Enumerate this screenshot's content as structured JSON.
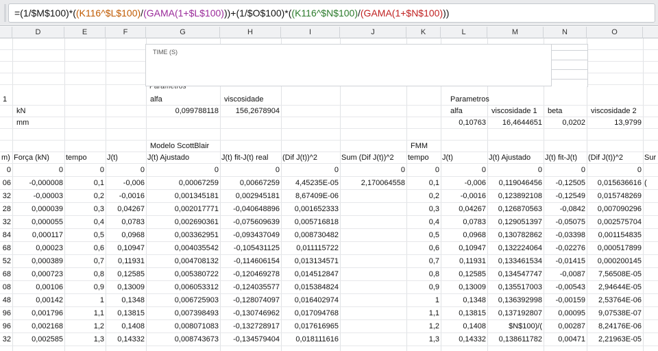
{
  "formula": "=(1/$M$100)*((K116^$L$100)/(GAMA(1+$L$100)))+(1/$O$100)*((K116^$N$100)/(GAMA(1+$N$100)))",
  "formula_parts": {
    "p1": "=(1/$M$100)*(",
    "p2": "(K116^$L$100)",
    "p3": "/",
    "p4": "(GAMA(1+$L$100)",
    "p5": "))",
    "p6": "+(1/$O$100)*(",
    "p7": "(K116^$N$100)",
    "p8": "/",
    "p9": "(GAMA(1+$N$100)",
    "p10": "))"
  },
  "columns": [
    "D",
    "E",
    "F",
    "G",
    "H",
    "I",
    "J",
    "K",
    "L",
    "M",
    "N",
    "O"
  ],
  "chart": {
    "x_label": "TIME (S)",
    "cut_text": "Parametros"
  },
  "params_rows": [
    {
      "c": "1",
      "g": "alfa",
      "h": "viscosidade",
      "l": "Parametros"
    },
    {
      "d": "kN",
      "g": "0,099788118",
      "h": "156,2678904",
      "l": "alfa",
      "m": "viscosidade 1",
      "n": "beta",
      "o": "viscosidade 2"
    },
    {
      "d": "mm",
      "l": "0,10763",
      "m": "16,4644651",
      "n": "0,0202",
      "o": "13,9799"
    }
  ],
  "section_row": {
    "g": "Modelo ScottBlair",
    "k": "FMM"
  },
  "header_row": {
    "c": "m)",
    "d": "Força (kN)",
    "e": "tempo",
    "f": "J(t)",
    "g": "J(t) Ajustado",
    "h": "J(t) fit-J(t) real",
    "i": "(Dif J(t))^2",
    "j": "Sum (Dif J(t))^2",
    "k": "tempo",
    "l": "J(t)",
    "m": "J(t) Ajustado",
    "n": "J(t) fit-J(t)",
    "o": "(Dif J(t))^2",
    "p": "Sur"
  },
  "data_rows": [
    [
      "0",
      "0",
      "0",
      "0",
      "0",
      "0",
      "0",
      "0",
      "0",
      "0",
      "0",
      "0",
      "0",
      ""
    ],
    [
      "06",
      "-0,000008",
      "0,1",
      "-0,006",
      "0,00067259",
      "0,00667259",
      "4,45235E-05",
      "2,170064558",
      "0,1",
      "-0,006",
      "0,119046456",
      "-0,12505",
      "0,015636616",
      "("
    ],
    [
      "32",
      "-0,00003",
      "0,2",
      "-0,0016",
      "0,001345181",
      "0,002945181",
      "8,67409E-06",
      "",
      "0,2",
      "-0,0016",
      "0,123892108",
      "-0,12549",
      "0,015748269",
      ""
    ],
    [
      "28",
      "0,000039",
      "0,3",
      "0,04267",
      "0,002017771",
      "-0,040648896",
      "0,001652333",
      "",
      "0,3",
      "0,04267",
      "0,126870563",
      "-0,0842",
      "0,007090296",
      ""
    ],
    [
      "32",
      "0,000055",
      "0,4",
      "0,0783",
      "0,002690361",
      "-0,075609639",
      "0,005716818",
      "",
      "0,4",
      "0,0783",
      "0,129051397",
      "-0,05075",
      "0,002575704",
      ""
    ],
    [
      "84",
      "0,000117",
      "0,5",
      "0,0968",
      "0,003362951",
      "-0,093437049",
      "0,008730482",
      "",
      "0,5",
      "0,0968",
      "0,130782862",
      "-0,03398",
      "0,001154835",
      ""
    ],
    [
      "68",
      "0,00023",
      "0,6",
      "0,10947",
      "0,004035542",
      "-0,105431125",
      "0,011115722",
      "",
      "0,6",
      "0,10947",
      "0,132224064",
      "-0,02276",
      "0,000517899",
      ""
    ],
    [
      "52",
      "0,000389",
      "0,7",
      "0,11931",
      "0,004708132",
      "-0,114606154",
      "0,013134571",
      "",
      "0,7",
      "0,11931",
      "0,133461534",
      "-0,01415",
      "0,000200145",
      ""
    ],
    [
      "68",
      "0,000723",
      "0,8",
      "0,12585",
      "0,005380722",
      "-0,120469278",
      "0,014512847",
      "",
      "0,8",
      "0,12585",
      "0,134547747",
      "-0,0087",
      "7,56508E-05",
      ""
    ],
    [
      "08",
      "0,00106",
      "0,9",
      "0,13009",
      "0,006053312",
      "-0,124035577",
      "0,015384824",
      "",
      "0,9",
      "0,13009",
      "0,135517003",
      "-0,00543",
      "2,94644E-05",
      ""
    ],
    [
      "48",
      "0,00142",
      "1",
      "0,1348",
      "0,006725903",
      "-0,128074097",
      "0,016402974",
      "",
      "1",
      "0,1348",
      "0,136392998",
      "-0,00159",
      "2,53764E-06",
      ""
    ],
    [
      "96",
      "0,001796",
      "1,1",
      "0,13815",
      "0,007398493",
      "-0,130746962",
      "0,017094768",
      "",
      "1,1",
      "0,13815",
      "0,137192807",
      "0,00095",
      "9,07538E-07",
      ""
    ],
    [
      "96",
      "0,002168",
      "1,2",
      "0,1408",
      "0,008071083",
      "-0,132728917",
      "0,017616965",
      "",
      "1,2",
      "0,1408",
      "$N$100)/(",
      "0,00287",
      "8,24176E-06",
      ""
    ],
    [
      "32",
      "0,002585",
      "1,3",
      "0,14332",
      "0,008743673",
      "-0,134579404",
      "0,018111616",
      "",
      "1,3",
      "0,14332",
      "0,138611782",
      "0,00471",
      "2,21963E-05",
      ""
    ]
  ]
}
